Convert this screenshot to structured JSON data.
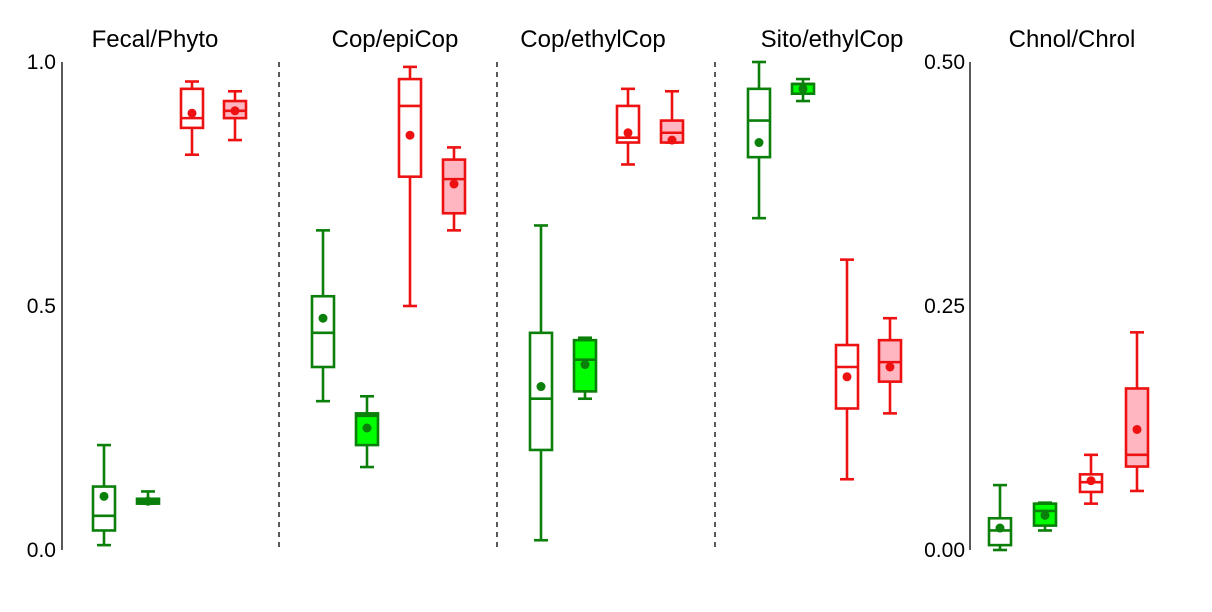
{
  "colors": {
    "green": "#0a7f0a",
    "green_fill": "#00ff00",
    "red": "#ee1111",
    "red_fill": "#ffb6c1",
    "axis": "#000000",
    "divider": "#000000"
  },
  "chart_data": {
    "type": "box",
    "grid": false,
    "legend": "none",
    "y_axes": [
      {
        "side": "left",
        "range": [
          0,
          1.0
        ],
        "ticks": [
          0.0,
          0.5,
          1.0
        ],
        "tick_labels": [
          "0.0",
          "0.5",
          "1.0"
        ],
        "panels": [
          0,
          1,
          2,
          3
        ]
      },
      {
        "side": "left",
        "range": [
          0,
          0.5
        ],
        "ticks": [
          0.0,
          0.25,
          0.5
        ],
        "tick_labels": [
          "0.00",
          "0.25",
          "0.50"
        ],
        "panels": [
          4
        ]
      }
    ],
    "panels": [
      {
        "title": "Fecal/Phyto",
        "y_axis": 0,
        "boxes": [
          {
            "style": "green-open",
            "min": 0.01,
            "q1": 0.04,
            "median": 0.07,
            "q3": 0.13,
            "max": 0.215,
            "mean": 0.11
          },
          {
            "style": "green-filled",
            "min": 0.095,
            "q1": 0.095,
            "median": 0.1,
            "q3": 0.105,
            "max": 0.12,
            "mean": 0.1
          },
          {
            "style": "red-open",
            "min": 0.81,
            "q1": 0.865,
            "median": 0.885,
            "q3": 0.945,
            "max": 0.96,
            "mean": 0.895
          },
          {
            "style": "red-filled",
            "min": 0.84,
            "q1": 0.885,
            "median": 0.9,
            "q3": 0.92,
            "max": 0.94,
            "mean": 0.9
          }
        ]
      },
      {
        "title": "Cop/epiCop",
        "y_axis": 0,
        "boxes": [
          {
            "style": "green-open",
            "min": 0.305,
            "q1": 0.375,
            "median": 0.445,
            "q3": 0.52,
            "max": 0.655,
            "mean": 0.475
          },
          {
            "style": "green-filled",
            "min": 0.17,
            "q1": 0.215,
            "median": 0.275,
            "q3": 0.28,
            "max": 0.315,
            "mean": 0.25
          },
          {
            "style": "red-open",
            "min": 0.5,
            "q1": 0.765,
            "median": 0.91,
            "q3": 0.965,
            "max": 0.99,
            "mean": 0.85
          },
          {
            "style": "red-filled",
            "min": 0.655,
            "q1": 0.69,
            "median": 0.76,
            "q3": 0.8,
            "max": 0.825,
            "mean": 0.75
          }
        ]
      },
      {
        "title": "Cop/ethylCop",
        "y_axis": 0,
        "boxes": [
          {
            "style": "green-open",
            "min": 0.02,
            "q1": 0.205,
            "median": 0.31,
            "q3": 0.445,
            "max": 0.665,
            "mean": 0.335
          },
          {
            "style": "green-filled",
            "min": 0.31,
            "q1": 0.325,
            "median": 0.39,
            "q3": 0.43,
            "max": 0.435,
            "mean": 0.38
          },
          {
            "style": "red-open",
            "min": 0.79,
            "q1": 0.835,
            "median": 0.845,
            "q3": 0.91,
            "max": 0.945,
            "mean": 0.855
          },
          {
            "style": "red-filled",
            "min": 0.835,
            "q1": 0.835,
            "median": 0.855,
            "q3": 0.88,
            "max": 0.94,
            "mean": 0.84
          }
        ]
      },
      {
        "title": "Sito/ethylCop",
        "y_axis": 0,
        "boxes": [
          {
            "style": "green-open",
            "min": 0.68,
            "q1": 0.805,
            "median": 0.88,
            "q3": 0.945,
            "max": 1.0,
            "mean": 0.835
          },
          {
            "style": "green-filled",
            "min": 0.92,
            "q1": 0.935,
            "median": 0.955,
            "q3": 0.955,
            "max": 0.965,
            "mean": 0.945
          },
          {
            "style": "red-open",
            "min": 0.145,
            "q1": 0.29,
            "median": 0.375,
            "q3": 0.42,
            "max": 0.595,
            "mean": 0.355
          },
          {
            "style": "red-filled",
            "min": 0.28,
            "q1": 0.345,
            "median": 0.385,
            "q3": 0.43,
            "max": 0.475,
            "mean": 0.375
          }
        ]
      },
      {
        "title": "Chnol/Chrol",
        "y_axis": 1,
        "boxes": [
          {
            "style": "green-open",
            "min": 0.0,
            "q1": 0.005,
            "median": 0.02,
            "q3": 0.0325,
            "max": 0.0665,
            "mean": 0.0225
          },
          {
            "style": "green-filled",
            "min": 0.02,
            "q1": 0.025,
            "median": 0.04,
            "q3": 0.0475,
            "max": 0.0485,
            "mean": 0.0355
          },
          {
            "style": "red-open",
            "min": 0.0475,
            "q1": 0.0595,
            "median": 0.0695,
            "q3": 0.0775,
            "max": 0.0975,
            "mean": 0.071
          },
          {
            "style": "red-filled",
            "min": 0.0605,
            "q1": 0.0855,
            "median": 0.0975,
            "q3": 0.1655,
            "max": 0.223,
            "mean": 0.1235
          }
        ]
      }
    ]
  }
}
